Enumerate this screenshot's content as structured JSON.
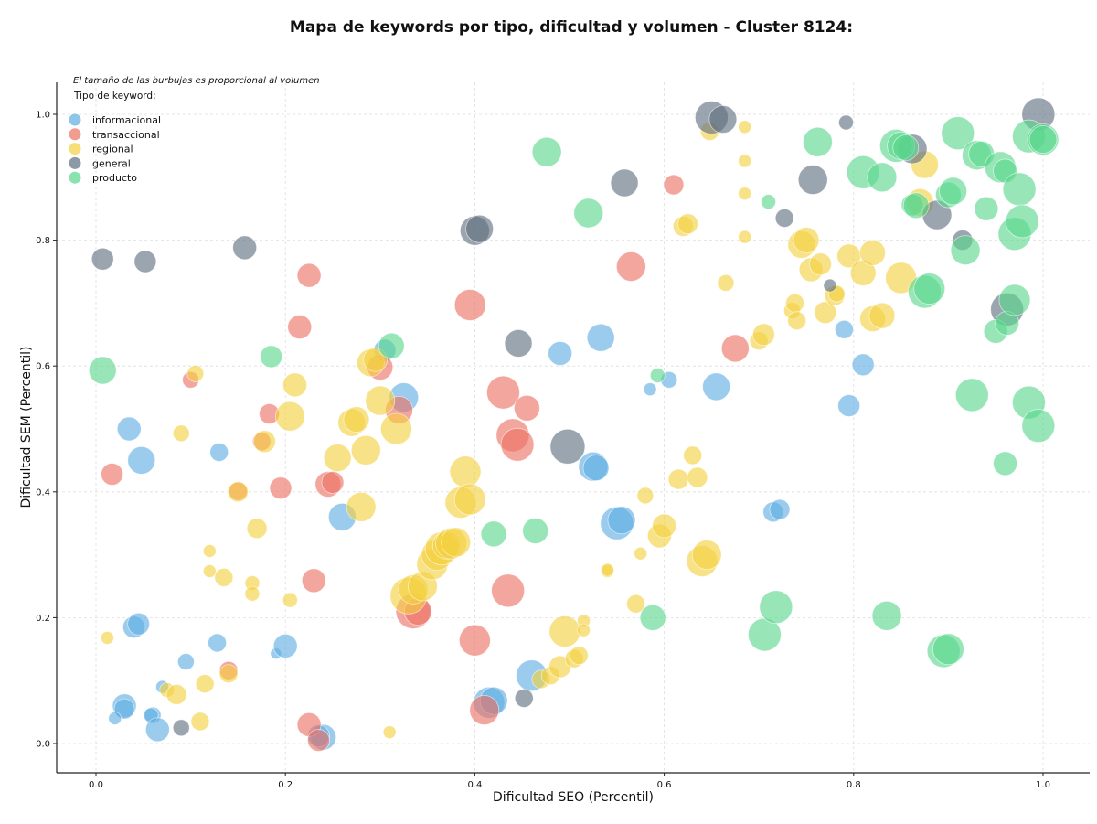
{
  "chart_data": {
    "type": "scatter",
    "title": "Mapa de keywords por tipo, dificultad y volumen - Cluster 8124:",
    "xlabel": "Dificultad SEO (Percentil)",
    "ylabel": "Dificultad SEM (Percentil)",
    "xlim": [
      -0.04,
      1.05
    ],
    "ylim": [
      -0.045,
      1.05
    ],
    "xticks": [
      "0.0",
      "0.2",
      "0.4",
      "0.6",
      "0.8",
      "1.0"
    ],
    "yticks": [
      "0.0",
      "0.2",
      "0.4",
      "0.6",
      "0.8",
      "1.0"
    ],
    "grid": true,
    "note": "El tamaño de las burbujas es proporcional al volumen",
    "legend_title": "Tipo de keyword:",
    "legend_position": "top-left",
    "series": [
      {
        "name": "informacional",
        "color": "#5dade2",
        "points": [
          [
            0.03,
            0.06,
            13
          ],
          [
            0.03,
            0.055,
            11
          ],
          [
            0.02,
            0.04,
            7
          ],
          [
            0.035,
            0.5,
            13
          ],
          [
            0.048,
            0.45,
            15
          ],
          [
            0.04,
            0.185,
            12
          ],
          [
            0.045,
            0.19,
            12
          ],
          [
            0.06,
            0.045,
            9
          ],
          [
            0.058,
            0.045,
            8
          ],
          [
            0.065,
            0.022,
            13
          ],
          [
            0.07,
            0.09,
            7
          ],
          [
            0.095,
            0.13,
            9
          ],
          [
            0.128,
            0.16,
            10
          ],
          [
            0.13,
            0.463,
            10
          ],
          [
            0.19,
            0.143,
            6
          ],
          [
            0.2,
            0.155,
            13
          ],
          [
            0.24,
            0.01,
            14
          ],
          [
            0.235,
            0.012,
            12
          ],
          [
            0.26,
            0.36,
            15
          ],
          [
            0.305,
            0.625,
            12
          ],
          [
            0.325,
            0.55,
            16
          ],
          [
            0.415,
            0.065,
            17
          ],
          [
            0.42,
            0.068,
            15
          ],
          [
            0.46,
            0.108,
            17
          ],
          [
            0.49,
            0.62,
            13
          ],
          [
            0.525,
            0.44,
            16
          ],
          [
            0.528,
            0.438,
            14
          ],
          [
            0.533,
            0.645,
            15
          ],
          [
            0.55,
            0.35,
            18
          ],
          [
            0.555,
            0.355,
            15
          ],
          [
            0.585,
            0.563,
            7
          ],
          [
            0.605,
            0.578,
            9
          ],
          [
            0.655,
            0.567,
            15
          ],
          [
            0.715,
            0.368,
            11
          ],
          [
            0.722,
            0.372,
            11
          ],
          [
            0.79,
            0.658,
            10
          ],
          [
            0.795,
            0.537,
            12
          ],
          [
            0.81,
            0.602,
            12
          ]
        ]
      },
      {
        "name": "transaccional",
        "color": "#ec7063",
        "points": [
          [
            0.017,
            0.428,
            12
          ],
          [
            0.1,
            0.578,
            9
          ],
          [
            0.14,
            0.116,
            10
          ],
          [
            0.15,
            0.401,
            10
          ],
          [
            0.175,
            0.48,
            10
          ],
          [
            0.183,
            0.524,
            11
          ],
          [
            0.195,
            0.406,
            12
          ],
          [
            0.215,
            0.662,
            13
          ],
          [
            0.225,
            0.744,
            13
          ],
          [
            0.225,
            0.03,
            13
          ],
          [
            0.23,
            0.259,
            13
          ],
          [
            0.235,
            0.005,
            12
          ],
          [
            0.245,
            0.412,
            14
          ],
          [
            0.25,
            0.415,
            12
          ],
          [
            0.3,
            0.598,
            14
          ],
          [
            0.32,
            0.53,
            15
          ],
          [
            0.335,
            0.21,
            19
          ],
          [
            0.34,
            0.21,
            15
          ],
          [
            0.395,
            0.697,
            17
          ],
          [
            0.4,
            0.164,
            17
          ],
          [
            0.41,
            0.053,
            16
          ],
          [
            0.43,
            0.558,
            18
          ],
          [
            0.435,
            0.243,
            18
          ],
          [
            0.44,
            0.49,
            18
          ],
          [
            0.445,
            0.475,
            18
          ],
          [
            0.455,
            0.533,
            14
          ],
          [
            0.565,
            0.758,
            16
          ],
          [
            0.61,
            0.888,
            11
          ],
          [
            0.675,
            0.628,
            15
          ]
        ]
      },
      {
        "name": "regional",
        "color": "#f4d03f",
        "points": [
          [
            0.012,
            0.168,
            7
          ],
          [
            0.075,
            0.085,
            8
          ],
          [
            0.085,
            0.078,
            11
          ],
          [
            0.09,
            0.493,
            9
          ],
          [
            0.105,
            0.588,
            9
          ],
          [
            0.11,
            0.035,
            10
          ],
          [
            0.115,
            0.095,
            10
          ],
          [
            0.12,
            0.306,
            7
          ],
          [
            0.12,
            0.274,
            7
          ],
          [
            0.135,
            0.264,
            10
          ],
          [
            0.14,
            0.111,
            10
          ],
          [
            0.15,
            0.4,
            11
          ],
          [
            0.165,
            0.255,
            8
          ],
          [
            0.165,
            0.238,
            8
          ],
          [
            0.17,
            0.342,
            11
          ],
          [
            0.178,
            0.48,
            12
          ],
          [
            0.205,
            0.228,
            8
          ],
          [
            0.205,
            0.52,
            16
          ],
          [
            0.21,
            0.57,
            13
          ],
          [
            0.255,
            0.454,
            15
          ],
          [
            0.27,
            0.51,
            15
          ],
          [
            0.275,
            0.515,
            14
          ],
          [
            0.28,
            0.376,
            16
          ],
          [
            0.285,
            0.466,
            16
          ],
          [
            0.29,
            0.605,
            15
          ],
          [
            0.295,
            0.61,
            13
          ],
          [
            0.3,
            0.545,
            16
          ],
          [
            0.31,
            0.018,
            7
          ],
          [
            0.317,
            0.5,
            17
          ],
          [
            0.33,
            0.235,
            20
          ],
          [
            0.335,
            0.245,
            16
          ],
          [
            0.345,
            0.25,
            16
          ],
          [
            0.355,
            0.285,
            17
          ],
          [
            0.36,
            0.3,
            17
          ],
          [
            0.365,
            0.31,
            18
          ],
          [
            0.37,
            0.315,
            15
          ],
          [
            0.375,
            0.318,
            17
          ],
          [
            0.38,
            0.32,
            16
          ],
          [
            0.385,
            0.383,
            17
          ],
          [
            0.39,
            0.432,
            17
          ],
          [
            0.395,
            0.388,
            17
          ],
          [
            0.47,
            0.102,
            10
          ],
          [
            0.48,
            0.108,
            10
          ],
          [
            0.49,
            0.122,
            12
          ],
          [
            0.495,
            0.178,
            17
          ],
          [
            0.505,
            0.135,
            10
          ],
          [
            0.51,
            0.14,
            10
          ],
          [
            0.515,
            0.195,
            7
          ],
          [
            0.515,
            0.18,
            7
          ],
          [
            0.54,
            0.274,
            7
          ],
          [
            0.54,
            0.276,
            7
          ],
          [
            0.57,
            0.222,
            10
          ],
          [
            0.575,
            0.302,
            7
          ],
          [
            0.58,
            0.394,
            9
          ],
          [
            0.595,
            0.33,
            13
          ],
          [
            0.6,
            0.346,
            13
          ],
          [
            0.615,
            0.42,
            11
          ],
          [
            0.62,
            0.822,
            11
          ],
          [
            0.625,
            0.826,
            11
          ],
          [
            0.63,
            0.458,
            10
          ],
          [
            0.635,
            0.423,
            11
          ],
          [
            0.64,
            0.29,
            17
          ],
          [
            0.645,
            0.3,
            16
          ],
          [
            0.648,
            0.973,
            10
          ],
          [
            0.665,
            0.732,
            9
          ],
          [
            0.685,
            0.98,
            7
          ],
          [
            0.685,
            0.926,
            7
          ],
          [
            0.685,
            0.874,
            7
          ],
          [
            0.685,
            0.805,
            7
          ],
          [
            0.7,
            0.64,
            10
          ],
          [
            0.705,
            0.65,
            12
          ],
          [
            0.735,
            0.688,
            9
          ],
          [
            0.738,
            0.7,
            10
          ],
          [
            0.74,
            0.672,
            10
          ],
          [
            0.745,
            0.793,
            15
          ],
          [
            0.75,
            0.8,
            14
          ],
          [
            0.755,
            0.753,
            13
          ],
          [
            0.765,
            0.762,
            12
          ],
          [
            0.77,
            0.685,
            12
          ],
          [
            0.78,
            0.712,
            11
          ],
          [
            0.782,
            0.715,
            9
          ],
          [
            0.795,
            0.775,
            13
          ],
          [
            0.81,
            0.748,
            14
          ],
          [
            0.82,
            0.78,
            14
          ],
          [
            0.82,
            0.675,
            14
          ],
          [
            0.83,
            0.68,
            14
          ],
          [
            0.85,
            0.74,
            17
          ],
          [
            0.87,
            0.86,
            15
          ],
          [
            0.875,
            0.92,
            15
          ]
        ]
      },
      {
        "name": "general",
        "color": "#5d6d7e",
        "points": [
          [
            0.007,
            0.77,
            12
          ],
          [
            0.052,
            0.766,
            12
          ],
          [
            0.09,
            0.025,
            9
          ],
          [
            0.157,
            0.788,
            13
          ],
          [
            0.4,
            0.815,
            16
          ],
          [
            0.405,
            0.818,
            15
          ],
          [
            0.446,
            0.636,
            15
          ],
          [
            0.452,
            0.072,
            10
          ],
          [
            0.498,
            0.472,
            19
          ],
          [
            0.558,
            0.891,
            15
          ],
          [
            0.65,
            0.995,
            18
          ],
          [
            0.662,
            0.992,
            15
          ],
          [
            0.727,
            0.835,
            10
          ],
          [
            0.757,
            0.896,
            16
          ],
          [
            0.775,
            0.728,
            7
          ],
          [
            0.792,
            0.987,
            8
          ],
          [
            0.862,
            0.945,
            16
          ],
          [
            0.888,
            0.84,
            16
          ],
          [
            0.915,
            0.8,
            11
          ],
          [
            0.962,
            0.69,
            18
          ],
          [
            0.995,
            1.0,
            18
          ]
        ]
      },
      {
        "name": "producto",
        "color": "#58d68d",
        "points": [
          [
            0.007,
            0.593,
            15
          ],
          [
            0.185,
            0.615,
            12
          ],
          [
            0.312,
            0.632,
            14
          ],
          [
            0.476,
            0.94,
            16
          ],
          [
            0.42,
            0.333,
            14
          ],
          [
            0.464,
            0.338,
            14
          ],
          [
            0.52,
            0.843,
            16
          ],
          [
            0.588,
            0.2,
            14
          ],
          [
            0.593,
            0.585,
            8
          ],
          [
            0.706,
            0.173,
            18
          ],
          [
            0.71,
            0.861,
            8
          ],
          [
            0.718,
            0.217,
            18
          ],
          [
            0.762,
            0.956,
            16
          ],
          [
            0.81,
            0.908,
            18
          ],
          [
            0.835,
            0.203,
            16
          ],
          [
            0.83,
            0.9,
            16
          ],
          [
            0.845,
            0.95,
            18
          ],
          [
            0.85,
            0.95,
            15
          ],
          [
            0.855,
            0.947,
            14
          ],
          [
            0.862,
            0.856,
            12
          ],
          [
            0.866,
            0.855,
            14
          ],
          [
            0.875,
            0.718,
            18
          ],
          [
            0.88,
            0.723,
            17
          ],
          [
            0.895,
            0.147,
            18
          ],
          [
            0.9,
            0.15,
            17
          ],
          [
            0.9,
            0.872,
            14
          ],
          [
            0.905,
            0.878,
            15
          ],
          [
            0.91,
            0.97,
            18
          ],
          [
            0.918,
            0.784,
            16
          ],
          [
            0.925,
            0.554,
            18
          ],
          [
            0.93,
            0.935,
            16
          ],
          [
            0.935,
            0.937,
            14
          ],
          [
            0.94,
            0.85,
            13
          ],
          [
            0.95,
            0.655,
            13
          ],
          [
            0.955,
            0.916,
            17
          ],
          [
            0.96,
            0.91,
            13
          ],
          [
            0.96,
            0.445,
            13
          ],
          [
            0.962,
            0.668,
            13
          ],
          [
            0.97,
            0.81,
            18
          ],
          [
            0.97,
            0.705,
            17
          ],
          [
            0.975,
            0.881,
            18
          ],
          [
            0.978,
            0.83,
            18
          ],
          [
            0.985,
            0.542,
            18
          ],
          [
            0.985,
            0.965,
            18
          ],
          [
            0.995,
            0.505,
            18
          ],
          [
            1.0,
            0.96,
            17
          ],
          [
            1.0,
            0.96,
            15
          ]
        ]
      }
    ]
  }
}
